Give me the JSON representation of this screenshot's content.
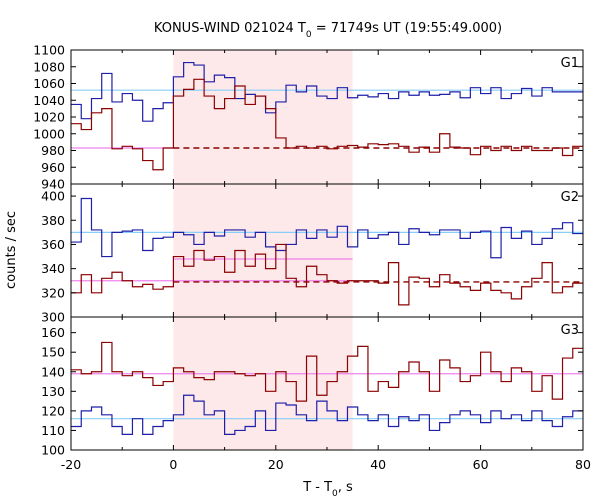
{
  "chart_data": {
    "type": "line",
    "title_main": "KONUS-WIND 021024 T",
    "title_sub": "0",
    "title_rest": " = 71749s UT (19:55:49.000)",
    "xlabel_main": "T - T",
    "xlabel_sub": "0",
    "xlabel_rest": ", s",
    "ylabel": "counts / sec",
    "xlim": [
      -20,
      80
    ],
    "x_ticks": [
      -20,
      0,
      20,
      40,
      60,
      80
    ],
    "shaded_interval": [
      0,
      35
    ],
    "colors": {
      "blue": "#1f1fa8",
      "red": "#8b0000",
      "cyan": "#87cefa",
      "pink": "#ee82ee",
      "shade": "#fde8ea"
    },
    "panels": [
      {
        "label": "G1",
        "ylim": [
          940,
          1100
        ],
        "y_ticks": [
          940,
          960,
          980,
          1000,
          1020,
          1040,
          1060,
          1080,
          1100
        ],
        "bin_edges": [
          -20,
          -18,
          -16,
          -14,
          -12,
          -10,
          -8,
          -6,
          -4,
          -2,
          0,
          2,
          4,
          6,
          8,
          10,
          12,
          14,
          16,
          18,
          20,
          22,
          24,
          26,
          28,
          30,
          32,
          34,
          36,
          38,
          40,
          42,
          44,
          46,
          48,
          50,
          52,
          54,
          56,
          58,
          60,
          62,
          64,
          66,
          68,
          70,
          72,
          74,
          76,
          78,
          80
        ],
        "series": [
          {
            "color": "blue",
            "values": [
              1035,
              1018,
              1042,
              1072,
              1038,
              1048,
              1040,
              1015,
              1030,
              1037,
              1068,
              1085,
              1082,
              1062,
              1070,
              1067,
              1042,
              1047,
              1045,
              1025,
              1038,
              1058,
              1050,
              1057,
              1045,
              1042,
              1055,
              1043,
              1046,
              1044,
              1048,
              1042,
              1050,
              1046,
              1050,
              1046,
              1047,
              1050,
              1043,
              1055,
              1048,
              1055,
              1042,
              1048,
              1054,
              1045,
              1055,
              1050,
              1050,
              1050
            ]
          },
          {
            "color": "red",
            "values": [
              1012,
              1005,
              1025,
              1030,
              982,
              985,
              982,
              968,
              957,
              983,
              1045,
              1053,
              1065,
              1045,
              1030,
              1042,
              1057,
              1035,
              1045,
              1030,
              995,
              983,
              985,
              983,
              985,
              982,
              985,
              986,
              984,
              988,
              987,
              988,
              985,
              978,
              984,
              978,
              1000,
              984,
              983,
              975,
              985,
              980,
              985,
              980,
              985,
              980,
              980,
              983,
              974,
              985
            ]
          }
        ],
        "refs": [
          {
            "color": "cyan",
            "style": "solid",
            "from": -20,
            "to": 80,
            "value": 1052
          },
          {
            "color": "pink",
            "style": "solid",
            "from": -20,
            "to": 0,
            "value": 983
          },
          {
            "color": "red",
            "style": "dashed",
            "from": 0,
            "to": 80,
            "value": 983
          }
        ]
      },
      {
        "label": "G2",
        "ylim": [
          300,
          410
        ],
        "y_ticks": [
          300,
          320,
          340,
          360,
          380,
          400
        ],
        "bin_edges": [
          -20,
          -18,
          -16,
          -14,
          -12,
          -10,
          -8,
          -6,
          -4,
          -2,
          0,
          2,
          4,
          6,
          8,
          10,
          12,
          14,
          16,
          18,
          20,
          22,
          24,
          26,
          28,
          30,
          32,
          34,
          36,
          38,
          40,
          42,
          44,
          46,
          48,
          50,
          52,
          54,
          56,
          58,
          60,
          62,
          64,
          66,
          68,
          70,
          72,
          74,
          76,
          78,
          80
        ],
        "series": [
          {
            "color": "blue",
            "values": [
              362,
              398,
              372,
              350,
              370,
              371,
              372,
              355,
              365,
              366,
              370,
              368,
              360,
              370,
              367,
              372,
              372,
              366,
              370,
              358,
              355,
              360,
              372,
              365,
              372,
              366,
              375,
              358,
              372,
              365,
              368,
              370,
              360,
              373,
              370,
              368,
              372,
              372,
              365,
              370,
              371,
              349,
              374,
              365,
              371,
              360,
              365,
              373,
              378,
              369
            ]
          },
          {
            "color": "red",
            "values": [
              320,
              335,
              320,
              332,
              337,
              330,
              325,
              327,
              323,
              325,
              350,
              342,
              355,
              347,
              350,
              337,
              355,
              342,
              352,
              340,
              360,
              332,
              325,
              342,
              335,
              330,
              328,
              330,
              330,
              330,
              328,
              345,
              310,
              333,
              332,
              325,
              335,
              328,
              325,
              322,
              328,
              322,
              320,
              315,
              325,
              332,
              345,
              320,
              325,
              328
            ]
          }
        ],
        "refs": [
          {
            "color": "cyan",
            "style": "solid",
            "from": -20,
            "to": 80,
            "value": 370
          },
          {
            "color": "pink",
            "style": "solid",
            "from": -20,
            "to": 35,
            "value": 330
          },
          {
            "color": "red",
            "style": "dashed",
            "from": 0,
            "to": 80,
            "value": 329
          },
          {
            "color": "pink",
            "style": "solid",
            "from": 0,
            "to": 35,
            "value": 348
          }
        ]
      },
      {
        "label": "G3",
        "ylim": [
          100,
          168
        ],
        "y_ticks": [
          100,
          110,
          120,
          130,
          140,
          150,
          160
        ],
        "bin_edges": [
          -20,
          -18,
          -16,
          -14,
          -12,
          -10,
          -8,
          -6,
          -4,
          -2,
          0,
          2,
          4,
          6,
          8,
          10,
          12,
          14,
          16,
          18,
          20,
          22,
          24,
          26,
          28,
          30,
          32,
          34,
          36,
          38,
          40,
          42,
          44,
          46,
          48,
          50,
          52,
          54,
          56,
          58,
          60,
          62,
          64,
          66,
          68,
          70,
          72,
          74,
          76,
          78,
          80
        ],
        "series": [
          {
            "color": "blue",
            "values": [
              112,
              120,
              122,
              118,
              112,
              108,
              116,
              108,
              112,
              115,
              118,
              128,
              125,
              118,
              120,
              108,
              110,
              112,
              120,
              110,
              124,
              123,
              118,
              115,
              125,
              120,
              115,
              122,
              118,
              115,
              118,
              112,
              117,
              115,
              118,
              110,
              114,
              118,
              120,
              118,
              114,
              120,
              116,
              118,
              115,
              120,
              115,
              112,
              117,
              120
            ]
          },
          {
            "color": "red",
            "values": [
              141,
              139,
              140,
              155,
              140,
              138,
              140,
              137,
              133,
              135,
              142,
              140,
              137,
              136,
              140,
              140,
              139,
              138,
              139,
              130,
              140,
              135,
              125,
              148,
              128,
              135,
              140,
              148,
              153,
              130,
              135,
              132,
              140,
              145,
              140,
              130,
              146,
              142,
              135,
              138,
              150,
              140,
              135,
              142,
              140,
              130,
              138,
              126,
              147,
              152
            ]
          }
        ],
        "refs": [
          {
            "color": "cyan",
            "style": "solid",
            "from": -20,
            "to": 80,
            "value": 116
          },
          {
            "color": "pink",
            "style": "solid",
            "from": -20,
            "to": 80,
            "value": 139
          }
        ]
      }
    ]
  }
}
